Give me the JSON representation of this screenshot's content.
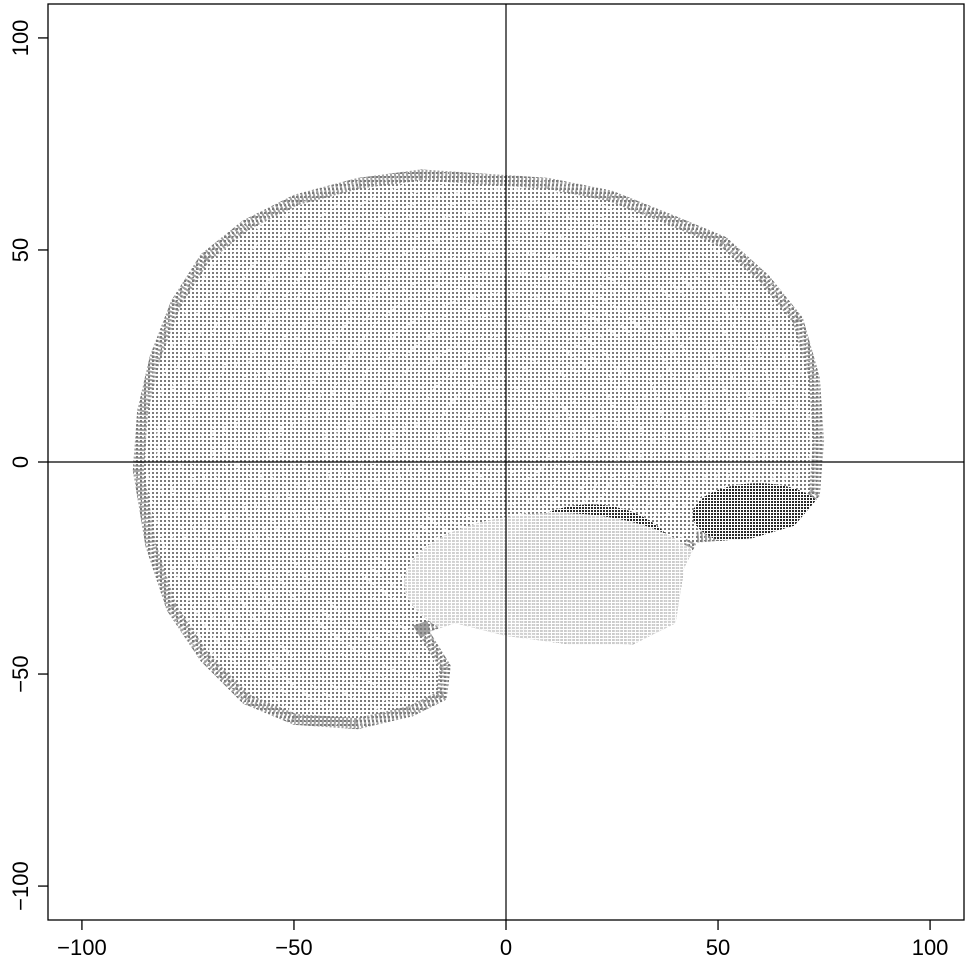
{
  "chart_data": {
    "type": "scatter",
    "title": "",
    "xlabel": "",
    "ylabel": "",
    "xlim": [
      -108,
      108
    ],
    "ylim": [
      -108,
      108
    ],
    "x_ticks": [
      -100,
      -50,
      0,
      50,
      100
    ],
    "y_ticks": [
      -100,
      -50,
      0,
      50,
      100
    ],
    "x_tick_labels": [
      "−100",
      "−50",
      "0",
      "50",
      "100"
    ],
    "y_tick_labels": [
      "−100",
      "−50",
      "0",
      "50",
      "100"
    ],
    "reference_lines": {
      "vertical_x": 0,
      "horizontal_y": 0
    },
    "grid": false,
    "legend": "none",
    "colors": {
      "frame": "#000000",
      "points_light": "#d4d4d4",
      "points_mid": "#7a7a7a",
      "points_dark": "#202020"
    },
    "regions": [
      {
        "shape": "brain-outline",
        "x_range": [
          -88,
          75
        ],
        "y_range": [
          -64,
          69
        ],
        "shade": "mid-gray"
      },
      {
        "shape": "cerebellum",
        "x_range": [
          -2,
          42
        ],
        "y_range": [
          -44,
          -10
        ],
        "shade": "dark"
      },
      {
        "shape": "brainstem",
        "x_range": [
          -24,
          48
        ],
        "y_range": [
          -45,
          -12
        ],
        "shade": "light"
      },
      {
        "shape": "frontal-lower",
        "x_range": [
          44,
          75
        ],
        "y_range": [
          -20,
          -5
        ],
        "shade": "dark"
      }
    ],
    "outline": [
      [
        -88,
        -2
      ],
      [
        -87,
        12
      ],
      [
        -84,
        25
      ],
      [
        -79,
        38
      ],
      [
        -72,
        49
      ],
      [
        -62,
        57
      ],
      [
        -50,
        63
      ],
      [
        -35,
        67
      ],
      [
        -20,
        69
      ],
      [
        -5,
        68
      ],
      [
        10,
        67
      ],
      [
        25,
        64
      ],
      [
        40,
        58
      ],
      [
        52,
        53
      ],
      [
        62,
        44
      ],
      [
        70,
        34
      ],
      [
        74,
        20
      ],
      [
        75,
        5
      ],
      [
        74,
        -8
      ],
      [
        68,
        -15
      ],
      [
        58,
        -18
      ],
      [
        45,
        -19
      ],
      [
        42,
        -25
      ],
      [
        40,
        -38
      ],
      [
        30,
        -43
      ],
      [
        15,
        -43
      ],
      [
        0,
        -41
      ],
      [
        -12,
        -38
      ],
      [
        -18,
        -40
      ],
      [
        -13,
        -48
      ],
      [
        -14,
        -56
      ],
      [
        -22,
        -60
      ],
      [
        -35,
        -63
      ],
      [
        -50,
        -62
      ],
      [
        -62,
        -57
      ],
      [
        -72,
        -47
      ],
      [
        -80,
        -35
      ],
      [
        -85,
        -20
      ]
    ]
  }
}
